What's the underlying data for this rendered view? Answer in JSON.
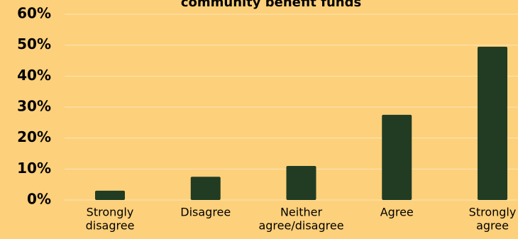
{
  "chart_data": {
    "type": "bar",
    "title": "community benefit funds",
    "categories": [
      [
        "Strongly",
        "disagree"
      ],
      [
        "Disagree"
      ],
      [
        "Neither",
        "agree/disagree"
      ],
      [
        "Agree"
      ],
      [
        "Strongly",
        "agree"
      ]
    ],
    "values": [
      3,
      7.5,
      11,
      27.5,
      49.5
    ],
    "ylim": [
      0,
      60
    ],
    "yticks": [
      "0%",
      "10%",
      "20%",
      "30%",
      "40%",
      "50%",
      "60%"
    ],
    "ytick_values": [
      0,
      10,
      20,
      30,
      40,
      50,
      60
    ],
    "grid": true,
    "legend": "none",
    "colors": {
      "background": "#fdd07b",
      "bar": "#213c22",
      "grid": "#fde6b8"
    }
  }
}
